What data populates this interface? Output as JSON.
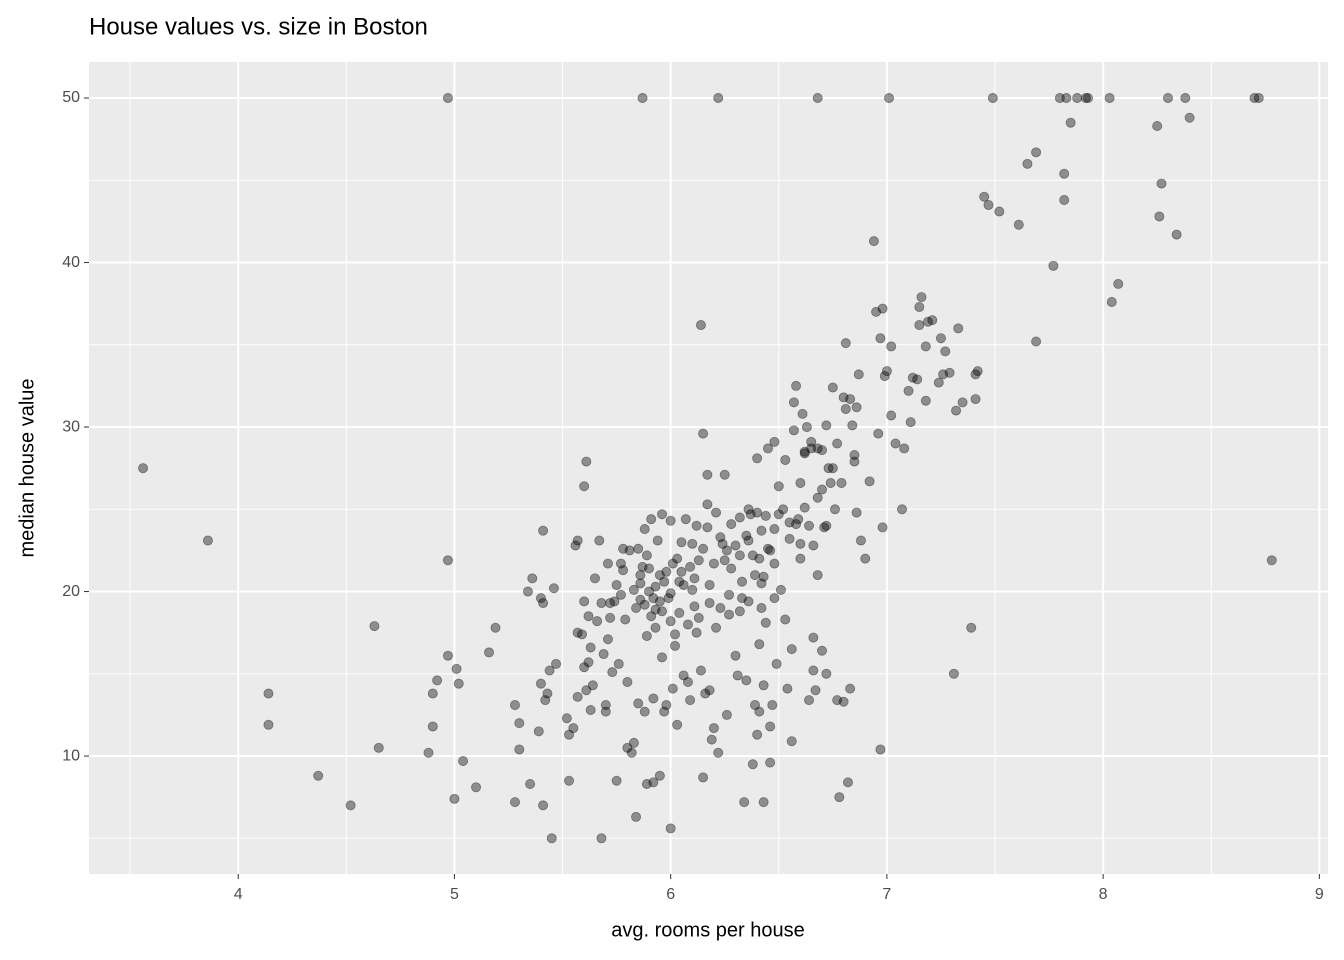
{
  "chart_data": {
    "type": "scatter",
    "title": "House values vs. size in Boston",
    "x_label": "avg. rooms per house",
    "y_label": "median house value",
    "color": "#000000",
    "opacity": 0.4,
    "grid": true,
    "xlim": [
      3.31,
      9.04
    ],
    "ylim": [
      2.83,
      52.19
    ],
    "xticks": [
      4,
      5,
      6,
      7,
      8,
      9
    ],
    "yticks": [
      10,
      20,
      30,
      40,
      50
    ],
    "x_minor_ticks": [
      3.5,
      4.5,
      5.5,
      6.5,
      7.5,
      8.5
    ],
    "y_minor_ticks": [
      5,
      15,
      25,
      35,
      45
    ],
    "x": [
      3.56,
      3.86,
      4.14,
      4.14,
      4.37,
      4.52,
      4.63,
      4.65,
      4.88,
      4.9,
      4.9,
      4.92,
      4.97,
      4.97,
      4.97,
      5.0,
      5.01,
      5.02,
      5.04,
      5.1,
      5.16,
      5.19,
      5.28,
      5.28,
      5.3,
      5.3,
      5.34,
      5.35,
      5.36,
      5.39,
      5.4,
      5.4,
      5.41,
      5.41,
      5.41,
      5.42,
      5.43,
      5.44,
      5.45,
      5.46,
      5.47,
      5.52,
      5.53,
      5.53,
      5.55,
      5.56,
      5.57,
      5.57,
      5.57,
      5.59,
      5.6,
      5.6,
      5.6,
      5.61,
      5.61,
      5.62,
      5.62,
      5.63,
      5.63,
      5.64,
      5.65,
      5.66,
      5.67,
      5.68,
      5.68,
      5.69,
      5.7,
      5.7,
      5.71,
      5.71,
      5.72,
      5.72,
      5.73,
      5.74,
      5.75,
      5.76,
      5.77,
      5.77,
      5.78,
      5.79,
      5.8,
      5.8,
      5.81,
      5.82,
      5.83,
      5.83,
      5.84,
      5.85,
      5.85,
      5.86,
      5.86,
      5.87,
      5.88,
      5.88,
      5.89,
      5.89,
      5.9,
      5.91,
      5.92,
      5.92,
      5.93,
      5.94,
      5.95,
      5.95,
      5.96,
      5.96,
      5.97,
      5.98,
      5.99,
      6.0,
      6.0,
      6.01,
      6.02,
      6.02,
      6.03,
      6.04,
      6.05,
      6.06,
      6.07,
      6.08,
      6.09,
      6.1,
      6.11,
      6.12,
      6.13,
      6.14,
      6.14,
      6.15,
      6.15,
      6.16,
      6.17,
      6.17,
      6.18,
      6.19,
      6.2,
      6.21,
      6.22,
      6.22,
      6.24,
      6.25,
      6.26,
      6.27,
      6.28,
      6.3,
      6.31,
      6.32,
      6.33,
      6.34,
      6.35,
      6.36,
      6.37,
      6.38,
      6.39,
      6.4,
      6.41,
      6.41,
      6.42,
      6.43,
      6.43,
      6.44,
      6.45,
      6.46,
      6.46,
      6.47,
      6.48,
      6.49,
      6.5,
      6.51,
      6.53,
      6.54,
      6.56,
      6.56,
      6.57,
      6.58,
      6.59,
      6.6,
      6.61,
      6.62,
      6.64,
      6.65,
      6.66,
      6.66,
      6.67,
      6.68,
      6.68,
      6.7,
      6.71,
      6.72,
      6.73,
      6.74,
      6.75,
      6.76,
      6.77,
      6.78,
      6.79,
      6.8,
      6.81,
      6.81,
      6.82,
      6.83,
      6.84,
      6.85,
      6.86,
      6.87,
      6.88,
      6.9,
      6.92,
      6.94,
      6.95,
      6.96,
      6.97,
      6.97,
      6.98,
      6.98,
      6.99,
      7.0,
      7.01,
      7.02,
      7.02,
      7.04,
      7.07,
      7.08,
      7.1,
      7.11,
      7.12,
      7.14,
      7.15,
      7.15,
      7.16,
      7.18,
      7.18,
      7.19,
      7.21,
      7.24,
      7.25,
      7.26,
      7.27,
      7.29,
      7.31,
      7.32,
      7.33,
      7.35,
      7.39,
      7.41,
      7.41,
      7.42,
      7.45,
      7.47,
      7.49,
      7.52,
      7.61,
      7.65,
      7.69,
      7.69,
      7.77,
      7.8,
      7.82,
      7.82,
      7.83,
      7.85,
      7.88,
      7.92,
      7.93,
      8.03,
      8.04,
      8.07,
      8.25,
      8.26,
      8.27,
      8.3,
      8.34,
      8.38,
      8.4,
      8.7,
      8.72,
      8.78,
      5.86,
      5.88,
      5.9,
      5.92,
      5.93,
      5.95,
      5.97,
      5.98,
      6.0,
      6.01,
      6.03,
      6.05,
      6.06,
      6.09,
      6.1,
      6.11,
      6.13,
      6.15,
      6.17,
      6.18,
      6.2,
      6.21,
      6.23,
      6.25,
      6.26,
      6.28,
      6.3,
      6.32,
      6.33,
      6.35,
      6.36,
      6.38,
      6.39,
      6.4,
      6.41,
      6.42,
      6.43,
      6.44,
      6.46,
      6.48,
      6.5,
      6.52,
      6.55,
      6.58,
      6.6,
      6.62,
      6.64,
      6.66,
      6.68,
      6.7,
      6.72,
      5.91,
      5.93,
      5.96,
      6.0,
      6.04,
      6.08,
      5.84,
      5.87,
      5.89,
      5.75,
      5.78,
      6.12,
      6.18,
      6.23,
      6.27,
      6.32,
      6.36,
      6.42,
      6.48,
      6.55,
      6.57,
      6.62,
      6.65,
      6.68,
      6.7,
      6.72,
      6.75,
      6.77,
      6.8,
      6.83,
      6.85,
      6.86,
      6.4,
      6.45,
      6.48,
      6.53,
      6.6,
      6.63
    ],
    "values": [
      27.5,
      23.1,
      13.8,
      11.9,
      8.8,
      7.0,
      17.9,
      10.5,
      10.2,
      11.8,
      13.8,
      14.6,
      21.9,
      50,
      16.1,
      7.4,
      15.3,
      14.4,
      9.7,
      8.1,
      16.3,
      17.8,
      13.1,
      7.2,
      12.0,
      10.4,
      20.0,
      8.3,
      20.8,
      11.5,
      19.6,
      14.4,
      19.3,
      23.7,
      7.0,
      13.4,
      13.8,
      15.2,
      5.0,
      20.2,
      15.6,
      12.3,
      8.5,
      11.3,
      11.7,
      22.8,
      17.5,
      23.1,
      13.6,
      17.4,
      19.4,
      15.4,
      26.4,
      27.9,
      14.0,
      15.7,
      18.5,
      16.6,
      12.8,
      14.3,
      20.8,
      18.2,
      23.1,
      5.0,
      19.3,
      16.2,
      13.1,
      12.7,
      21.7,
      17.1,
      19.3,
      18.4,
      15.1,
      19.4,
      8.5,
      15.6,
      21.7,
      19.8,
      22.6,
      18.3,
      14.5,
      10.5,
      22.5,
      10.2,
      10.8,
      20.1,
      6.3,
      13.2,
      22.6,
      21.0,
      19.5,
      50,
      23.8,
      12.7,
      8.3,
      17.3,
      21.4,
      24.4,
      8.4,
      13.5,
      18.9,
      23.1,
      8.8,
      21.0,
      24.7,
      16.0,
      12.7,
      13.1,
      19.6,
      5.6,
      24.3,
      14.1,
      17.4,
      16.7,
      11.9,
      20.6,
      23.0,
      14.9,
      24.4,
      14.5,
      13.4,
      20.1,
      19.1,
      24.0,
      18.4,
      36.2,
      15.2,
      8.7,
      29.6,
      13.8,
      27.1,
      25.3,
      14.0,
      11.0,
      11.7,
      17.8,
      50,
      10.2,
      22.9,
      27.1,
      12.5,
      18.6,
      21.4,
      16.1,
      14.9,
      22.2,
      19.6,
      7.2,
      14.6,
      23.1,
      24.7,
      9.5,
      13.1,
      11.3,
      12.7,
      16.8,
      19.0,
      7.2,
      14.3,
      18.1,
      22.6,
      9.6,
      11.8,
      13.1,
      19.6,
      15.6,
      26.4,
      20.1,
      18.3,
      14.1,
      16.5,
      10.9,
      31.5,
      32.5,
      24.4,
      22.0,
      30.8,
      28.4,
      13.4,
      29.1,
      17.2,
      15.2,
      14.0,
      50,
      21.0,
      16.4,
      23.9,
      15.0,
      27.5,
      26.6,
      32.4,
      25.0,
      13.4,
      7.5,
      26.6,
      13.3,
      35.1,
      31.1,
      8.4,
      14.1,
      30.1,
      27.9,
      24.8,
      33.2,
      23.1,
      22.0,
      26.7,
      41.3,
      37.0,
      29.6,
      10.4,
      35.4,
      37.2,
      23.9,
      33.1,
      33.4,
      50,
      30.7,
      34.9,
      29.0,
      25.0,
      28.7,
      32.2,
      30.3,
      33.0,
      32.9,
      36.2,
      37.3,
      37.9,
      31.6,
      34.9,
      36.4,
      36.5,
      32.7,
      35.4,
      33.2,
      34.6,
      33.3,
      15.0,
      31.0,
      36.0,
      31.5,
      17.8,
      31.7,
      33.2,
      33.4,
      44.0,
      43.5,
      50,
      43.1,
      42.3,
      46.0,
      46.7,
      35.2,
      39.8,
      50,
      45.4,
      43.8,
      50,
      48.5,
      50,
      50,
      50,
      50,
      37.6,
      38.7,
      48.3,
      42.8,
      44.8,
      50,
      41.7,
      50,
      48.8,
      50,
      50,
      21.9,
      20.5,
      19.2,
      20.0,
      19.6,
      20.3,
      19.4,
      20.6,
      21.2,
      19.9,
      21.7,
      22.0,
      21.2,
      20.4,
      21.5,
      22.9,
      20.8,
      21.9,
      22.6,
      23.9,
      20.4,
      21.7,
      24.8,
      23.3,
      21.9,
      22.5,
      24.1,
      22.8,
      24.5,
      20.6,
      23.4,
      25.0,
      22.2,
      21.0,
      24.8,
      22.0,
      23.7,
      20.9,
      24.6,
      22.5,
      23.8,
      24.7,
      25.0,
      23.2,
      24.1,
      22.9,
      25.1,
      24.0,
      22.8,
      25.7,
      26.2,
      24.0,
      18.5,
      17.8,
      18.8,
      18.2,
      18.7,
      18.0,
      19.0,
      21.5,
      22.2,
      20.4,
      21.3,
      17.5,
      19.3,
      19.0,
      19.8,
      18.8,
      19.4,
      20.5,
      21.7,
      24.2,
      29.8,
      28.5,
      28.7,
      28.7,
      28.6,
      30.1,
      27.5,
      29.0,
      31.8,
      31.7,
      28.3,
      31.2,
      28.1,
      28.7,
      29.1,
      28.0,
      26.6,
      30.0
    ]
  }
}
